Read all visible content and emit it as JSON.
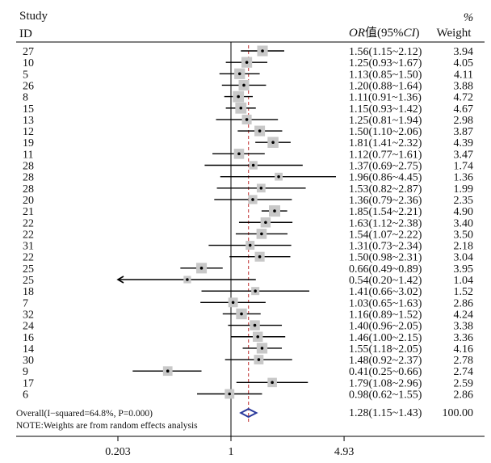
{
  "chart_data": {
    "type": "forest",
    "header": {
      "study_label_line1": "Study",
      "study_label_line2": "ID",
      "or_label_italic": "OR",
      "or_label_rest": "值(95%",
      "ci_label_italic": "CI",
      "ci_label_close": ")",
      "weight_label_line1": "%",
      "weight_label_line2": "Weight"
    },
    "scale": "log",
    "xlim": [
      0.203,
      4.93
    ],
    "xticks": [
      {
        "value": 0.203,
        "label": "0.203"
      },
      {
        "value": 1,
        "label": "1"
      },
      {
        "value": 4.93,
        "label": "4.93"
      }
    ],
    "null_line": 1,
    "pooled_line": 1.28,
    "studies": [
      {
        "id": "27",
        "or": 1.56,
        "lo": 1.15,
        "hi": 2.12,
        "ci_text": "1.56(1.15~2.12)",
        "weight": 3.94,
        "weight_text": "3.94"
      },
      {
        "id": "10",
        "or": 1.25,
        "lo": 0.93,
        "hi": 1.67,
        "ci_text": "1.25(0.93~1.67)",
        "weight": 4.05,
        "weight_text": "4.05"
      },
      {
        "id": "5",
        "or": 1.13,
        "lo": 0.85,
        "hi": 1.5,
        "ci_text": "1.13(0.85~1.50)",
        "weight": 4.11,
        "weight_text": "4.11"
      },
      {
        "id": "26",
        "or": 1.2,
        "lo": 0.88,
        "hi": 1.64,
        "ci_text": "1.20(0.88~1.64)",
        "weight": 3.88,
        "weight_text": "3.88"
      },
      {
        "id": "8",
        "or": 1.11,
        "lo": 0.91,
        "hi": 1.36,
        "ci_text": "1.11(0.91~1.36)",
        "weight": 4.72,
        "weight_text": "4.72"
      },
      {
        "id": "15",
        "or": 1.15,
        "lo": 0.93,
        "hi": 1.42,
        "ci_text": "1.15(0.93~1.42)",
        "weight": 4.67,
        "weight_text": "4.67"
      },
      {
        "id": "13",
        "or": 1.25,
        "lo": 0.81,
        "hi": 1.94,
        "ci_text": "1.25(0.81~1.94)",
        "weight": 2.98,
        "weight_text": "2.98"
      },
      {
        "id": "12",
        "or": 1.5,
        "lo": 1.1,
        "hi": 2.06,
        "ci_text": "1.50(1.10~2.06)",
        "weight": 3.87,
        "weight_text": "3.87"
      },
      {
        "id": "19",
        "or": 1.81,
        "lo": 1.41,
        "hi": 2.32,
        "ci_text": "1.81(1.41~2.32)",
        "weight": 4.39,
        "weight_text": "4.39"
      },
      {
        "id": "11",
        "or": 1.12,
        "lo": 0.77,
        "hi": 1.61,
        "ci_text": "1.12(0.77~1.61)",
        "weight": 3.47,
        "weight_text": "3.47"
      },
      {
        "id": "28",
        "or": 1.37,
        "lo": 0.69,
        "hi": 2.75,
        "ci_text": "1.37(0.69~2.75)",
        "weight": 1.74,
        "weight_text": "1.74"
      },
      {
        "id": "28",
        "or": 1.96,
        "lo": 0.86,
        "hi": 4.45,
        "ci_text": "1.96(0.86~4.45)",
        "weight": 1.36,
        "weight_text": "1.36"
      },
      {
        "id": "28",
        "or": 1.53,
        "lo": 0.82,
        "hi": 2.87,
        "ci_text": "1.53(0.82~2.87)",
        "weight": 1.99,
        "weight_text": "1.99"
      },
      {
        "id": "20",
        "or": 1.36,
        "lo": 0.79,
        "hi": 2.36,
        "ci_text": "1.36(0.79~2.36)",
        "weight": 2.35,
        "weight_text": "2.35"
      },
      {
        "id": "21",
        "or": 1.85,
        "lo": 1.54,
        "hi": 2.21,
        "ci_text": "1.85(1.54~2.21)",
        "weight": 4.9,
        "weight_text": "4.90"
      },
      {
        "id": "22",
        "or": 1.63,
        "lo": 1.12,
        "hi": 2.38,
        "ci_text": "1.63(1.12~2.38)",
        "weight": 3.4,
        "weight_text": "3.40"
      },
      {
        "id": "22",
        "or": 1.54,
        "lo": 1.07,
        "hi": 2.22,
        "ci_text": "1.54(1.07~2.22)",
        "weight": 3.5,
        "weight_text": "3.50"
      },
      {
        "id": "31",
        "or": 1.31,
        "lo": 0.73,
        "hi": 2.34,
        "ci_text": "1.31(0.73~2.34)",
        "weight": 2.18,
        "weight_text": "2.18"
      },
      {
        "id": "22",
        "or": 1.5,
        "lo": 0.98,
        "hi": 2.31,
        "ci_text": "1.50(0.98~2.31)",
        "weight": 3.04,
        "weight_text": "3.04"
      },
      {
        "id": "25",
        "or": 0.66,
        "lo": 0.49,
        "hi": 0.89,
        "ci_text": "0.66(0.49~0.89)",
        "weight": 3.95,
        "weight_text": "3.95"
      },
      {
        "id": "25",
        "or": 0.54,
        "lo": 0.2,
        "hi": 1.42,
        "ci_text": "0.54(0.20~1.42)",
        "weight": 1.04,
        "weight_text": "1.04"
      },
      {
        "id": "18",
        "or": 1.41,
        "lo": 0.66,
        "hi": 3.02,
        "ci_text": "1.41(0.66~3.02)",
        "weight": 1.52,
        "weight_text": "1.52"
      },
      {
        "id": "7",
        "or": 1.03,
        "lo": 0.65,
        "hi": 1.63,
        "ci_text": "1.03(0.65~1.63)",
        "weight": 2.86,
        "weight_text": "2.86"
      },
      {
        "id": "32",
        "or": 1.16,
        "lo": 0.89,
        "hi": 1.52,
        "ci_text": "1.16(0.89~1.52)",
        "weight": 4.24,
        "weight_text": "4.24"
      },
      {
        "id": "24",
        "or": 1.4,
        "lo": 0.96,
        "hi": 2.05,
        "ci_text": "1.40(0.96~2.05)",
        "weight": 3.38,
        "weight_text": "3.38"
      },
      {
        "id": "16",
        "or": 1.46,
        "lo": 1.0,
        "hi": 2.15,
        "ci_text": "1.46(1.00~2.15)",
        "weight": 3.36,
        "weight_text": "3.36"
      },
      {
        "id": "14",
        "or": 1.55,
        "lo": 1.18,
        "hi": 2.05,
        "ci_text": "1.55(1.18~2.05)",
        "weight": 4.16,
        "weight_text": "4.16"
      },
      {
        "id": "30",
        "or": 1.48,
        "lo": 0.92,
        "hi": 2.37,
        "ci_text": "1.48(0.92~2.37)",
        "weight": 2.78,
        "weight_text": "2.78"
      },
      {
        "id": "9",
        "or": 0.41,
        "lo": 0.25,
        "hi": 0.66,
        "ci_text": "0.41(0.25~0.66)",
        "weight": 2.74,
        "weight_text": "2.74"
      },
      {
        "id": "17",
        "or": 1.79,
        "lo": 1.08,
        "hi": 2.96,
        "ci_text": "1.79(1.08~2.96)",
        "weight": 2.59,
        "weight_text": "2.59"
      },
      {
        "id": "6",
        "or": 0.98,
        "lo": 0.62,
        "hi": 1.55,
        "ci_text": "0.98(0.62~1.55)",
        "weight": 2.86,
        "weight_text": "2.86"
      }
    ],
    "overall": {
      "label": "Overall(I−squared=64.8%, P=0.000)",
      "or": 1.28,
      "lo": 1.15,
      "hi": 1.43,
      "ci_text": "1.28(1.15~1.43)",
      "weight_text": "100.00"
    },
    "note": "NOTE:Weights are from random effects analysis"
  },
  "colors": {
    "box": "#c8c8c8",
    "line": "#000000",
    "pooled_line": "#c84b4b",
    "diamond": "#2b3a9c"
  }
}
